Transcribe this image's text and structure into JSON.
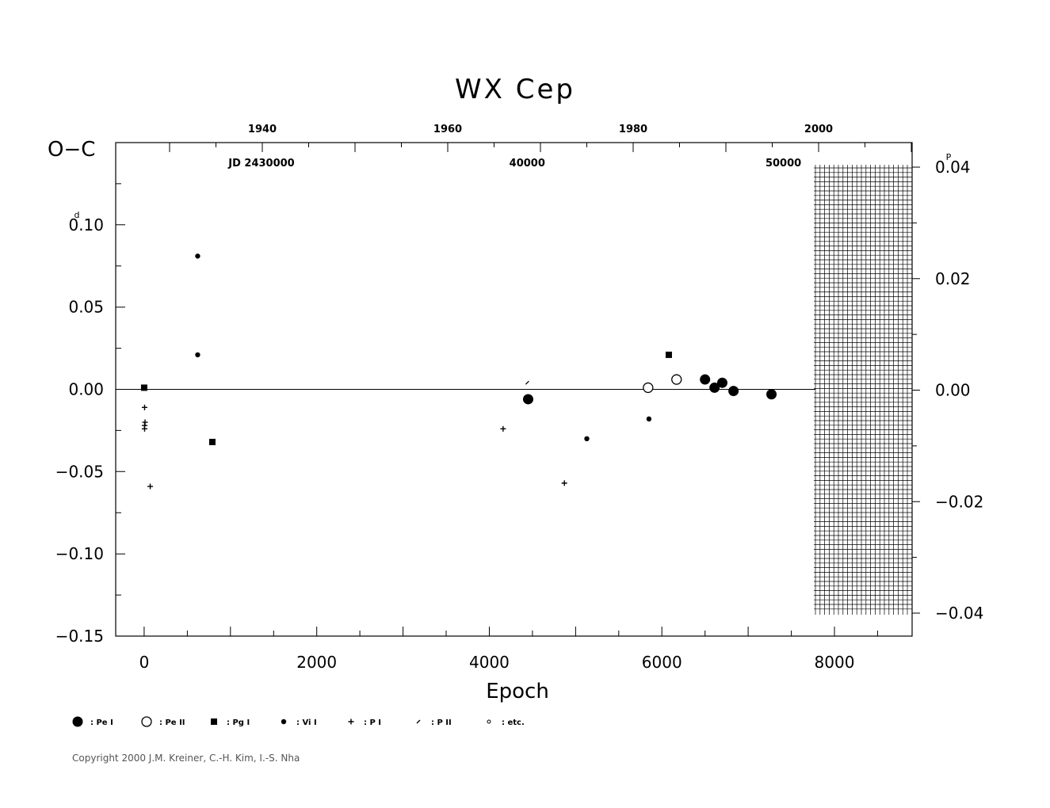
{
  "chart_data": {
    "type": "scatter",
    "title": "WX Cep",
    "xlabel": "Epoch",
    "ylabel": "O−C",
    "xlim": [
      -330,
      8900
    ],
    "ylim": [
      -0.15,
      0.15
    ],
    "x_ticks": [
      {
        "value": 0,
        "label": "0"
      },
      {
        "value": 2000,
        "label": "2000"
      },
      {
        "value": 4000,
        "label": "4000"
      },
      {
        "value": 6000,
        "label": "6000"
      },
      {
        "value": 8000,
        "label": "8000"
      }
    ],
    "y_ticks": [
      {
        "value": 0.1,
        "label": "0.10",
        "unit_mark": "d"
      },
      {
        "value": 0.05,
        "label": "0.05"
      },
      {
        "value": 0.0,
        "label": "0.00"
      },
      {
        "value": -0.05,
        "label": "−0.05"
      },
      {
        "value": -0.1,
        "label": "−0.10"
      },
      {
        "value": -0.15,
        "label": "−0.15"
      }
    ],
    "right_axis": {
      "ticks": [
        {
          "value": 0.04,
          "label": "0.04",
          "unit_mark": "P"
        },
        {
          "value": 0.02,
          "label": "0.02"
        },
        {
          "value": 0.0,
          "label": "0.00"
        },
        {
          "value": -0.02,
          "label": "−0.02"
        },
        {
          "value": -0.04,
          "label": "−0.04"
        }
      ]
    },
    "top_year_axis": {
      "labels": [
        {
          "value": 1940,
          "label": "1940"
        },
        {
          "value": 1960,
          "label": "1960"
        },
        {
          "value": 1980,
          "label": "1980"
        },
        {
          "value": 2000,
          "label": "2000"
        }
      ]
    },
    "top_jd_axis": {
      "labels": [
        {
          "value": 30000,
          "label": "JD  2430000"
        },
        {
          "value": 40000,
          "label": "40000"
        },
        {
          "value": 50000,
          "label": "50000"
        }
      ]
    },
    "zero_line": true,
    "shaded_future_region": {
      "x_from": 7780,
      "x_to": 8880
    },
    "series": [
      {
        "name": ": Pe I",
        "marker": "big-filled-circle",
        "points": [
          [
            4450,
            -0.006
          ],
          [
            6500,
            0.006
          ],
          [
            6610,
            0.001
          ],
          [
            6700,
            0.004
          ],
          [
            6830,
            -0.001
          ],
          [
            7270,
            -0.003
          ]
        ]
      },
      {
        "name": ": Pe II",
        "marker": "open-circle",
        "points": [
          [
            5840,
            0.001
          ],
          [
            6170,
            0.006
          ]
        ]
      },
      {
        "name": ": Pg I",
        "marker": "filled-square",
        "points": [
          [
            0,
            0.001
          ],
          [
            790,
            -0.032
          ],
          [
            6080,
            0.021
          ]
        ]
      },
      {
        "name": ": Vi I",
        "marker": "small-filled-circle",
        "points": [
          [
            620,
            0.081
          ],
          [
            620,
            0.021
          ],
          [
            5130,
            -0.03
          ],
          [
            5850,
            -0.018
          ]
        ]
      },
      {
        "name": ": P I",
        "marker": "plus",
        "points": [
          [
            5,
            -0.011
          ],
          [
            10,
            -0.02
          ],
          [
            5,
            -0.022
          ],
          [
            5,
            -0.024
          ],
          [
            70,
            -0.059
          ],
          [
            4160,
            -0.024
          ],
          [
            4870,
            -0.057
          ]
        ]
      },
      {
        "name": ": P II",
        "marker": "slash",
        "points": [
          [
            4440,
            0.004
          ]
        ]
      },
      {
        "name": ": etc.",
        "marker": "tiny-open-circle",
        "points": []
      }
    ]
  },
  "footer": {
    "copyright": "Copyright 2000 J.M. Kreiner, C.-H. Kim, I.-S. Nha"
  }
}
